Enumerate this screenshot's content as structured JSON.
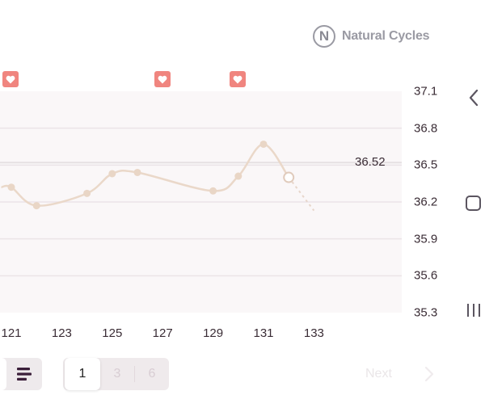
{
  "brand": {
    "logo_letter": "N",
    "name": "Natural Cycles"
  },
  "hearts": [
    "heart-icon",
    "heart-icon",
    "heart-icon"
  ],
  "chart_data": {
    "type": "line",
    "x_ticks": [
      "121",
      "123",
      "125",
      "127",
      "129",
      "131",
      "133"
    ],
    "y_ticks": [
      "37.1",
      "36.8",
      "36.5",
      "36.2",
      "35.9",
      "35.6",
      "35.3"
    ],
    "ylim": [
      35.3,
      37.1
    ],
    "series": [
      {
        "x": [
          120.6,
          121,
          122,
          124,
          125,
          126,
          129,
          130,
          131,
          132
        ],
        "values": [
          36.32,
          36.32,
          36.17,
          36.27,
          36.43,
          36.44,
          36.29,
          36.41,
          36.67,
          36.4
        ]
      }
    ],
    "forecast": {
      "x": [
        132,
        133
      ],
      "values": [
        36.4,
        36.13
      ]
    },
    "reference_value": "36.52",
    "colors": {
      "line": "#ead8c9",
      "point": "#e9d6c6",
      "plot_bg": "#faf7f8",
      "heart": "#f0857f"
    }
  },
  "pager": {
    "pages": [
      "1",
      "3",
      "6"
    ],
    "active": "1",
    "next_label": "Next"
  },
  "nav": {
    "back": "back-icon",
    "home": "home-icon",
    "recents": "recents-icon"
  }
}
